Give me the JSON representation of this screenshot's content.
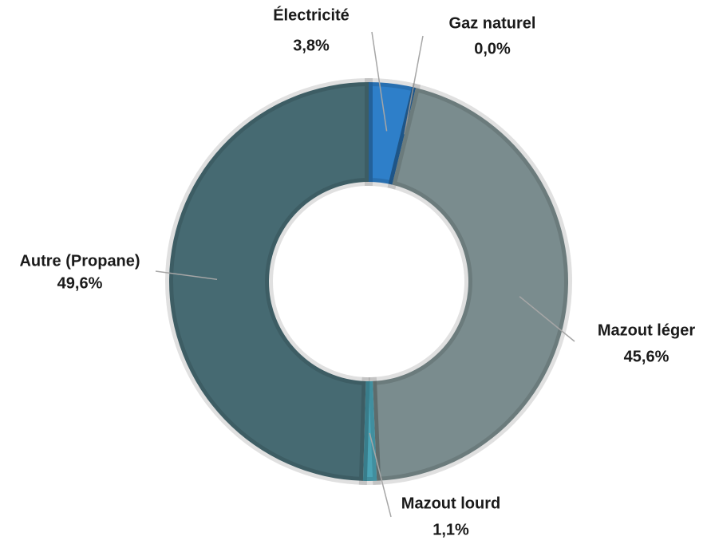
{
  "chart_data": {
    "type": "donut",
    "categories": [
      "Électricité",
      "Gaz naturel",
      "Mazout léger",
      "Mazout lourd",
      "Autre (Propane)"
    ],
    "values": [
      3.8,
      0.0,
      45.6,
      1.1,
      49.6
    ],
    "value_labels": [
      "3,8%",
      "0,0%",
      "45,6%",
      "1,1%",
      "49,6%"
    ],
    "colors": [
      "#2e7fc9",
      "#1f4e79",
      "#7a8c8e",
      "#4aa3b5",
      "#466a72"
    ]
  }
}
